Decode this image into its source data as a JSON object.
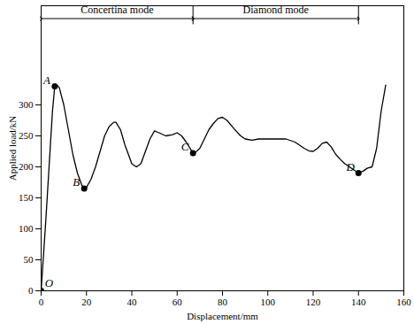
{
  "chart_data": {
    "type": "line",
    "x_label": "Displacement/mm",
    "y_label": "Applied load/kN",
    "color": "#000000",
    "x": [
      0,
      2,
      4,
      5,
      6,
      7,
      8,
      10,
      12,
      14,
      16,
      18,
      19,
      20,
      22,
      24,
      26,
      28,
      30,
      32,
      33,
      35,
      37,
      40,
      42,
      44,
      46,
      48,
      50,
      52,
      55,
      58,
      60,
      62,
      64,
      66,
      67,
      68,
      70,
      72,
      74,
      76,
      78,
      80,
      82,
      85,
      88,
      90,
      93,
      96,
      100,
      104,
      108,
      112,
      116,
      118,
      120,
      122,
      124,
      126,
      128,
      130,
      132,
      134,
      136,
      138,
      140,
      142,
      144,
      146,
      148,
      150,
      152
    ],
    "values": [
      0,
      110,
      230,
      290,
      330,
      332,
      328,
      300,
      260,
      220,
      190,
      170,
      165,
      167,
      180,
      200,
      225,
      250,
      265,
      272,
      272,
      260,
      235,
      205,
      200,
      205,
      225,
      245,
      258,
      255,
      250,
      252,
      255,
      250,
      240,
      228,
      222,
      223,
      230,
      245,
      260,
      270,
      278,
      280,
      275,
      262,
      250,
      245,
      243,
      245,
      245,
      245,
      245,
      240,
      230,
      226,
      225,
      230,
      238,
      240,
      232,
      220,
      212,
      205,
      200,
      195,
      190,
      193,
      198,
      200,
      230,
      290,
      332
    ],
    "xlim": [
      0,
      160
    ],
    "xticks": [
      0,
      20,
      40,
      60,
      80,
      100,
      120,
      140,
      160
    ],
    "ylim": [
      0,
      460
    ],
    "yticks": [
      0,
      50,
      100,
      150,
      200,
      250,
      300
    ],
    "points": [
      {
        "label": "O",
        "x": 0,
        "y": 0
      },
      {
        "label": "A",
        "x": 6,
        "y": 330
      },
      {
        "label": "B",
        "x": 19,
        "y": 165
      },
      {
        "label": "C",
        "x": 67,
        "y": 222
      },
      {
        "label": "D",
        "x": 140,
        "y": 190
      }
    ],
    "modes": [
      {
        "label": "Concertina mode",
        "x_start": 0,
        "x_end": 67
      },
      {
        "label": "Diamond mode",
        "x_start": 67,
        "x_end": 140
      }
    ]
  }
}
